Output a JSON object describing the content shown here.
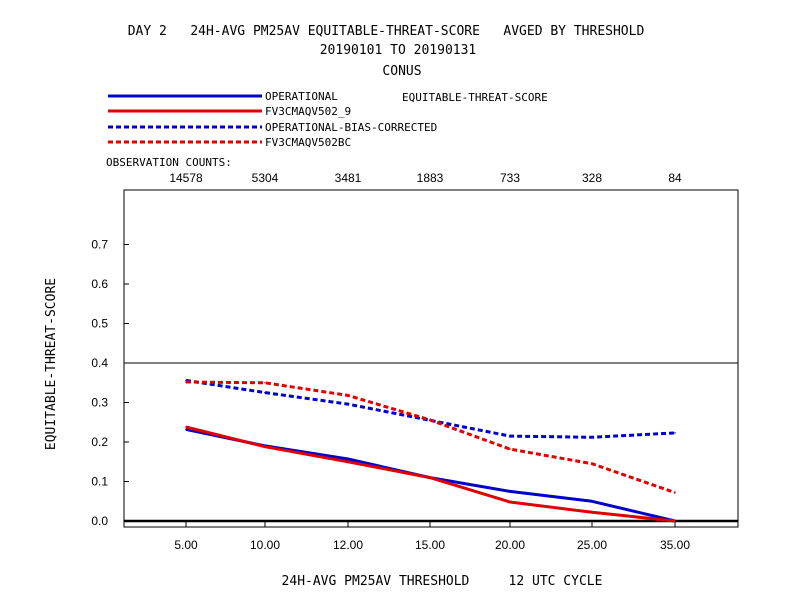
{
  "chart_data": {
    "type": "line",
    "title_lines": [
      "DAY 2   24H-AVG PM25AV EQUITABLE-THREAT-SCORE   AVGED BY THRESHOLD",
      "20190101 TO 20190131",
      "CONUS"
    ],
    "xlabel": "24H-AVG PM25AV THRESHOLD     12 UTC CYCLE",
    "ylabel": "EQUITABLE-THREAT-SCORE",
    "legend_label": "EQUITABLE-THREAT-SCORE",
    "obs_counts_label": "OBSERVATION COUNTS:",
    "obs_counts": [
      "14578",
      "5304",
      "3481",
      "1883",
      "733",
      "328",
      "84"
    ],
    "categories": [
      "5.00",
      "10.00",
      "12.00",
      "15.00",
      "20.00",
      "25.00",
      "35.00"
    ],
    "ylim": [
      0,
      0.8
    ],
    "yticks": [
      "0.0",
      "0.1",
      "0.2",
      "0.3",
      "0.4",
      "0.5",
      "0.6",
      "0.7"
    ],
    "series": [
      {
        "name": "OPERATIONAL",
        "color": "#0000cc",
        "dashed": false,
        "values": [
          0.232,
          0.19,
          0.157,
          0.11,
          0.075,
          0.05,
          0.0
        ]
      },
      {
        "name": "FV3CMAQV502_9",
        "color": "#e00000",
        "dashed": false,
        "values": [
          0.238,
          0.188,
          0.15,
          0.11,
          0.048,
          0.022,
          0.0
        ]
      },
      {
        "name": "OPERATIONAL-BIAS-CORRECTED",
        "color": "#0000cc",
        "dashed": true,
        "values": [
          0.356,
          0.325,
          0.296,
          0.255,
          0.215,
          0.212,
          0.223
        ]
      },
      {
        "name": "FV3CMAQV502BC",
        "color": "#e00000",
        "dashed": true,
        "values": [
          0.352,
          0.35,
          0.318,
          0.256,
          0.182,
          0.145,
          0.072
        ]
      }
    ]
  }
}
